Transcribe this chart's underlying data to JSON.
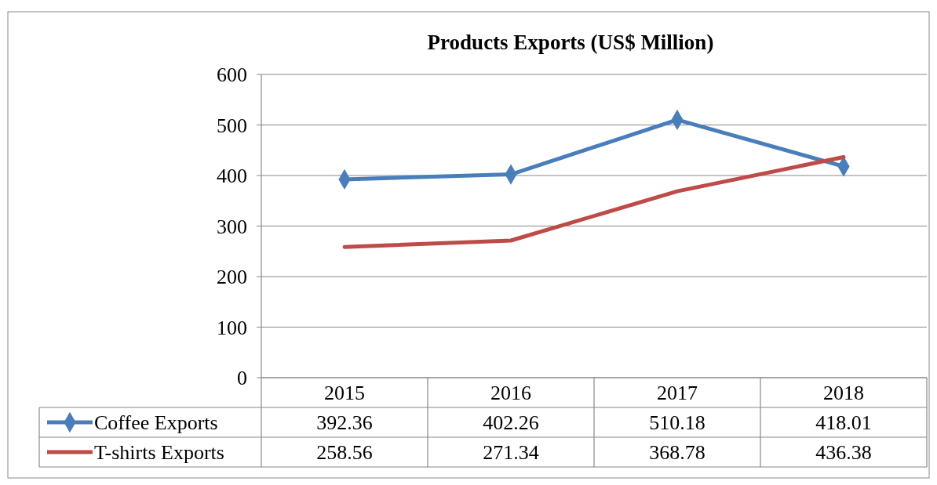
{
  "chart_data": {
    "type": "line",
    "title": "Products Exports (US$ Million)",
    "categories": [
      "2015",
      "2016",
      "2017",
      "2018"
    ],
    "series": [
      {
        "name": "Coffee Exports",
        "color": "#4a7ebb",
        "values": [
          392.36,
          402.26,
          510.18,
          418.01
        ],
        "marker": "diamond"
      },
      {
        "name": "T-shirts Exports",
        "color": "#be4b48",
        "values": [
          258.56,
          271.34,
          368.78,
          436.38
        ],
        "marker": "none"
      }
    ],
    "ylim": [
      0,
      600
    ],
    "yticks": [
      0,
      100,
      200,
      300,
      400,
      500,
      600
    ],
    "grid": "y",
    "legend": "bottom",
    "data_labels": true
  }
}
